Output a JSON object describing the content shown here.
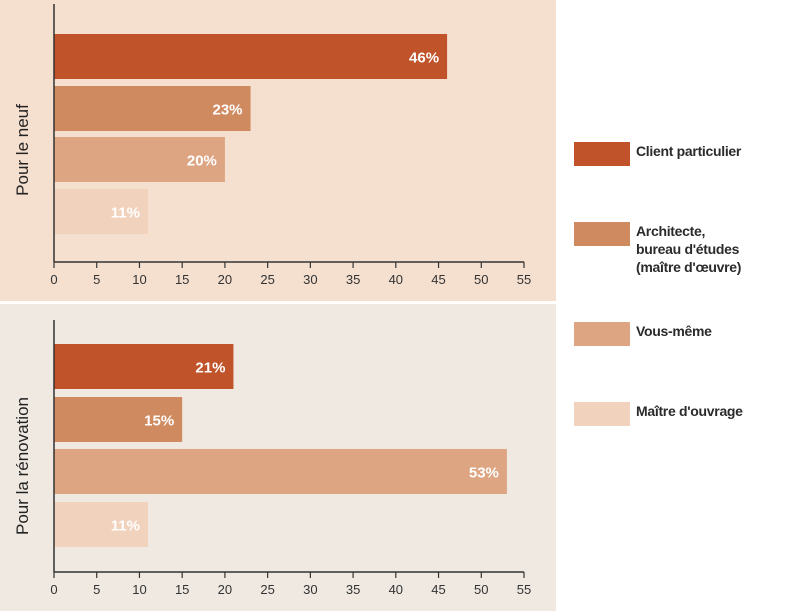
{
  "colors": {
    "panel_top_bg": "#f5dfcf",
    "panel_bottom_bg": "#efe9e1",
    "axis": "#333333",
    "label_white": "#ffffff",
    "series": [
      "#c0532a",
      "#d08a5f",
      "#dea582",
      "#f1d2bc"
    ]
  },
  "legend": [
    {
      "label": "Client particulier"
    },
    {
      "label": "Architecte,\nbureau d'études\n(maître d'œuvre)"
    },
    {
      "label": "Vous-même"
    },
    {
      "label": "Maître d'ouvrage"
    }
  ],
  "chart_data": [
    {
      "type": "bar",
      "orientation": "horizontal",
      "group_label": "Pour le neuf",
      "categories": [
        "Client particulier",
        "Architecte, bureau d'études (maître d'œuvre)",
        "Vous-même",
        "Maître d'ouvrage"
      ],
      "values": [
        46,
        23,
        20,
        11
      ],
      "value_labels": [
        "46%",
        "23%",
        "20%",
        "11%"
      ],
      "xlim": [
        0,
        55
      ],
      "xticks": [
        0,
        5,
        10,
        15,
        20,
        25,
        30,
        35,
        40,
        45,
        50,
        55
      ],
      "grid": false
    },
    {
      "type": "bar",
      "orientation": "horizontal",
      "group_label": "Pour la rénovation",
      "categories": [
        "Client particulier",
        "Architecte, bureau d'études (maître d'œuvre)",
        "Vous-même",
        "Maître d'ouvrage"
      ],
      "values": [
        21,
        15,
        53,
        11
      ],
      "value_labels": [
        "21%",
        "15%",
        "53%",
        "11%"
      ],
      "xlim": [
        0,
        55
      ],
      "xticks": [
        0,
        5,
        10,
        15,
        20,
        25,
        30,
        35,
        40,
        45,
        50,
        55
      ],
      "grid": false
    }
  ]
}
